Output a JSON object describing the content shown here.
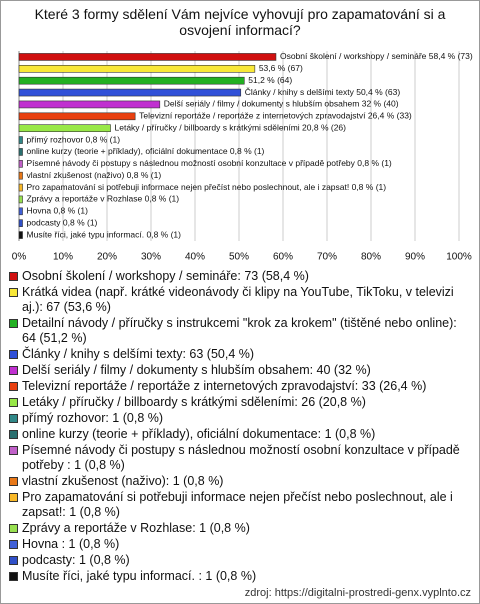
{
  "chart_data": {
    "type": "barh",
    "title": "Které 3 formy sdělení Vám nejvíce vyhovují pro zapamatování si a osvojení informací?",
    "categories": [
      "Osobní školení / workshopy / semináře",
      "Krátká videa",
      "Detailní návody / příručky",
      "Články / knihy s delšími texty",
      "Delší seriály / filmy / dokumenty s hlubším obsahem",
      "Televizní reportáže / reportáže z internetových zpravodajství",
      "Letáky / příručky / billboardy s krátkými sděleními",
      "přímý rozhovor",
      "online kurzy (teorie + příklady), oficiální dokumentace",
      "Písemné návody či postupy s následnou možností osobní konzultace v případě potřeby",
      "vlastní zkušenost (naživo)",
      "Pro zapamatování si potřebuji informace nejen přečíst nebo poslechnout, ale i zapsat!",
      "Zprávy a reportáže v Rozhlase",
      "Hovna",
      "podcasty",
      "Musíte říci, jaké typu informací."
    ],
    "values": [
      58.4,
      53.6,
      51.2,
      50.4,
      32,
      26.4,
      20.8,
      0.8,
      0.8,
      0.8,
      0.8,
      0.8,
      0.8,
      0.8,
      0.8,
      0.8
    ],
    "value_labels": [
      "Osobní školení / workshopy / semináře 58,4 % (73)",
      "53,6 % (67)",
      "51,2 % (64)",
      "Články / knihy s delšími texty 50,4 % (63)",
      "Delší seriály / filmy / dokumenty s hlubším obsahem 32 % (40)",
      "Televizní reportáže / reportáže z internetových zpravodajství 26,4 % (33)",
      "Letáky / příručky / billboardy s krátkými sděleními 20,8 % (26)",
      "přímý rozhovor 0,8 % (1)",
      "online kurzy (teorie + příklady), oficiální dokumentace 0,8 % (1)",
      "Písemné návody či postupy s následnou možností osobní konzultace v případě potřeby  0,8 % (1)",
      "vlastní zkušenost (naživo) 0,8 % (1)",
      "Pro zapamatování si potřebuji informace nejen přečíst nebo poslechnout, ale i zapsat! 0,8 % (1)",
      "Zprávy a reportáže v Rozhlase 0,8 % (1)",
      "Hovna  0,8 % (1)",
      "podcasty 0,8 % (1)",
      "Musíte říci, jaké typu informací.  0,8 % (1)"
    ],
    "colors": [
      "#d01010",
      "#f8e838",
      "#22b022",
      "#3050d8",
      "#c030d0",
      "#e84010",
      "#98e848",
      "#308888",
      "#2a7070",
      "#c060c8",
      "#e87818",
      "#f8b828",
      "#98e050",
      "#4060d8",
      "#3050c8",
      "#111111"
    ],
    "legend": [
      "Osobní školení / workshopy / semináře: 73 (58,4 %)",
      "Krátká videa (např. krátké videonávody či klipy na YouTube, TikToku, v televizi aj.): 67 (53,6 %)",
      "Detailní návody / příručky s instrukcemi \"krok za krokem\" (tištěné nebo online): 64 (51,2 %)",
      "Články / knihy s delšími texty: 63 (50,4 %)",
      "Delší seriály / filmy / dokumenty s hlubším obsahem: 40 (32 %)",
      "Televizní reportáže / reportáže z internetových zpravodajství: 33 (26,4 %)",
      "Letáky / příručky / billboardy s krátkými sděleními: 26 (20,8 %)",
      "přímý rozhovor: 1 (0,8 %)",
      "online kurzy (teorie + příklady), oficiální dokumentace: 1 (0,8 %)",
      "Písemné návody či postupy s následnou možností osobní konzultace v případě potřeby : 1 (0,8 %)",
      "vlastní zkušenost (naživo): 1 (0,8 %)",
      "Pro zapamatování si potřebuji informace nejen přečíst nebo poslechnout, ale i zapsat!: 1 (0,8 %)",
      "Zprávy a reportáže v Rozhlase: 1 (0,8 %)",
      "Hovna : 1 (0,8 %)",
      "podcasty: 1 (0,8 %)",
      "Musíte říci, jaké typu informací. : 1 (0,8 %)"
    ],
    "xlim": [
      0,
      100
    ],
    "xticks": [
      {
        "value": 0,
        "label": "0%"
      },
      {
        "value": 10,
        "label": "10%"
      },
      {
        "value": 20,
        "label": "20%"
      },
      {
        "value": 30,
        "label": "30%"
      },
      {
        "value": 40,
        "label": "40%"
      },
      {
        "value": 50,
        "label": "50%"
      },
      {
        "value": 60,
        "label": "60%"
      },
      {
        "value": 70,
        "label": "70%"
      },
      {
        "value": 80,
        "label": "80%"
      },
      {
        "value": 90,
        "label": "90%"
      },
      {
        "value": 100,
        "label": "100%"
      }
    ],
    "grid": true,
    "source": "zdroj: https://digitalni-prostredi-genx.vyplnto.cz"
  }
}
